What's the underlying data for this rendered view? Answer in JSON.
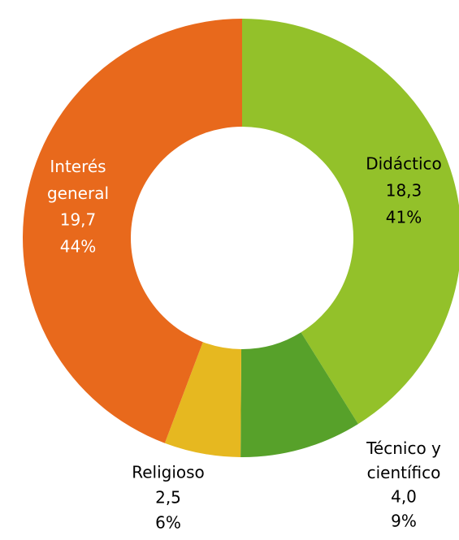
{
  "chart_data": {
    "type": "donut",
    "categories": [
      "Didáctico",
      "Técnico y científico",
      "Religioso",
      "Interés general"
    ],
    "values": [
      18.3,
      4.0,
      2.5,
      19.7
    ],
    "value_labels": [
      "18,3",
      "4,0",
      "2,5",
      "19,7"
    ],
    "percent_labels": [
      "41%",
      "9%",
      "6%",
      "44%"
    ],
    "colors": [
      "#93c12a",
      "#57a12a",
      "#e6b820",
      "#e8691c"
    ]
  }
}
